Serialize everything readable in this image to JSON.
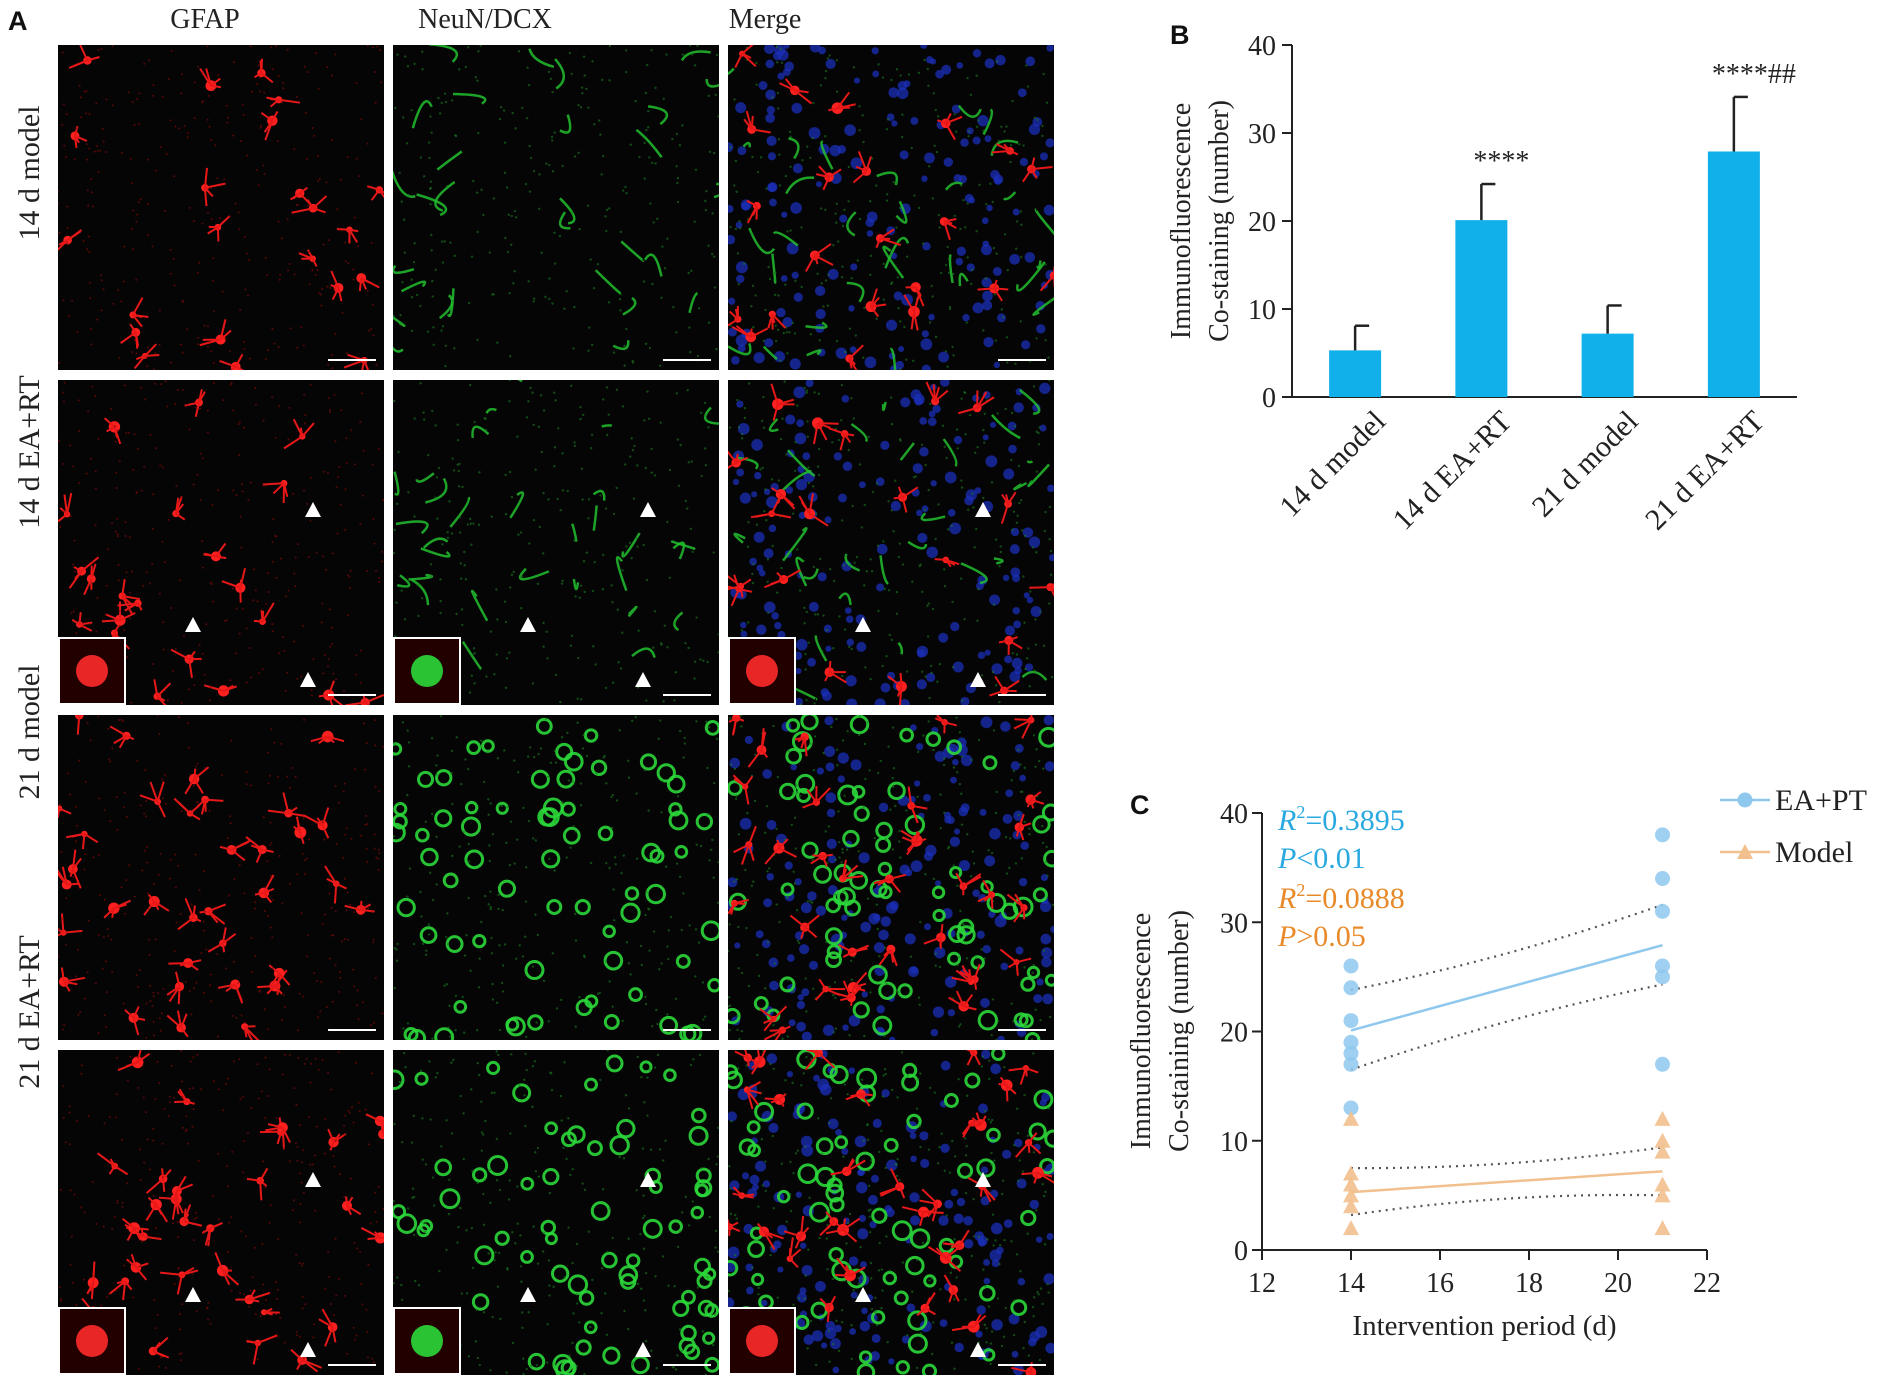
{
  "panel_a": {
    "letter": "A",
    "columns": [
      "GFAP",
      "NeuN/DCX",
      "Merge"
    ],
    "rows": [
      "14 d model",
      "14 d EA+RT",
      "21 d model",
      "21 d EA+RT"
    ]
  },
  "chart_data": [
    {
      "panel": "B",
      "type": "bar",
      "ylabel": [
        "Immunofluorescence",
        "Co-staining (number)"
      ],
      "categories": [
        "14 d model",
        "14 d EA+RT",
        "21 d model",
        "21 d EA+RT"
      ],
      "values": [
        5.3,
        20.1,
        7.2,
        27.9
      ],
      "errors": [
        2.8,
        4.1,
        3.2,
        6.2
      ],
      "annotations": [
        "",
        "****",
        "",
        "****##"
      ],
      "ylim": [
        0,
        40
      ],
      "yticks": [
        0,
        10,
        20,
        30,
        40
      ],
      "bar_color": "#12b0ea"
    },
    {
      "panel": "C",
      "type": "scatter",
      "xlabel": "Intervention period (d)",
      "ylabel": [
        "Immunofluorescence",
        "Co-staining (number)"
      ],
      "xlim": [
        12,
        22
      ],
      "ylim": [
        0,
        40
      ],
      "xticks": [
        12,
        14,
        16,
        18,
        20,
        22
      ],
      "yticks": [
        0,
        10,
        20,
        30,
        40
      ],
      "legend_position": "top-right",
      "stats": [
        {
          "r2_label": "R",
          "r2_sup": "2",
          "r2_value": "=0.3895",
          "p_label": "P",
          "p_value": "<0.01",
          "color": "#2aa8e0"
        },
        {
          "r2_label": "R",
          "r2_sup": "2",
          "r2_value": "=0.0888",
          "p_label": "P",
          "p_value": ">0.05",
          "color": "#e88a2a"
        }
      ],
      "series": [
        {
          "name": "EA+PT",
          "marker": "circle",
          "color": "#8fc8ee",
          "points": [
            [
              14,
              13
            ],
            [
              14,
              17
            ],
            [
              14,
              18
            ],
            [
              14,
              19
            ],
            [
              14,
              21
            ],
            [
              14,
              24
            ],
            [
              14,
              26
            ],
            [
              21,
              17
            ],
            [
              21,
              25
            ],
            [
              21,
              26
            ],
            [
              21,
              31
            ],
            [
              21,
              34
            ],
            [
              21,
              38
            ]
          ],
          "fit": [
            [
              14,
              20.1
            ],
            [
              21,
              27.9
            ]
          ],
          "ci_upper": [
            [
              14,
              23.8
            ],
            [
              17.5,
              26.6
            ],
            [
              21,
              31.6
            ]
          ],
          "ci_lower": [
            [
              14,
              16.5
            ],
            [
              17.5,
              21.4
            ],
            [
              21,
              24.3
            ]
          ]
        },
        {
          "name": "Model",
          "marker": "triangle",
          "color": "#f2c08e",
          "points": [
            [
              14,
              2
            ],
            [
              14,
              4
            ],
            [
              14,
              5
            ],
            [
              14,
              6
            ],
            [
              14,
              7
            ],
            [
              14,
              12
            ],
            [
              21,
              2
            ],
            [
              21,
              5
            ],
            [
              21,
              6
            ],
            [
              21,
              9
            ],
            [
              21,
              10
            ],
            [
              21,
              12
            ]
          ],
          "fit": [
            [
              14,
              5.3
            ],
            [
              21,
              7.2
            ]
          ],
          "ci_upper": [
            [
              14,
              7.5
            ],
            [
              17.5,
              7.4
            ],
            [
              21,
              9.4
            ]
          ],
          "ci_lower": [
            [
              14,
              3.2
            ],
            [
              17.5,
              5.3
            ],
            [
              21,
              5.0
            ]
          ]
        }
      ]
    }
  ]
}
